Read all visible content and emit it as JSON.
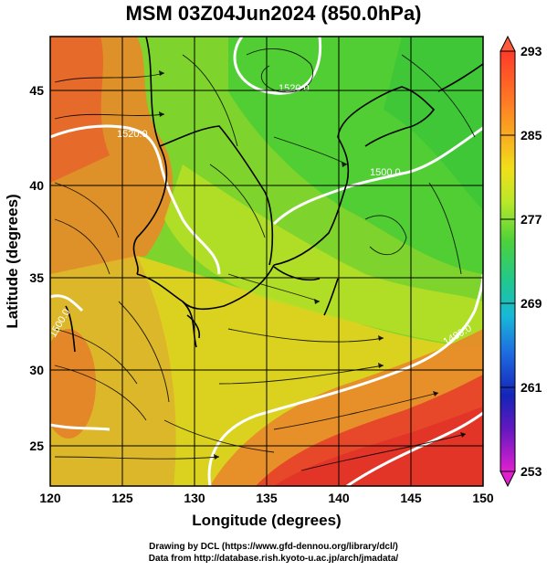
{
  "title": "MSM 03Z04Jun2024 (850.0hPa)",
  "credits": {
    "line1": "Drawing by DCL (https://www.gfd-dennou.org/library/dcl/)",
    "line2": "Data from http://database.rish.kyoto-u.ac.jp/arch/jmadata/"
  },
  "axes": {
    "xlabel": "Longitude (degrees)",
    "ylabel": "Latitude  (degrees)",
    "x_ticks": [
      "120",
      "125",
      "130",
      "135",
      "140",
      "145",
      "150"
    ],
    "y_ticks": [
      "45",
      "40",
      "35",
      "30",
      "25"
    ]
  },
  "colorbar": {
    "labels": [
      "293",
      "285",
      "277",
      "269",
      "261",
      "253"
    ],
    "colors": [
      "#ff3a2a",
      "#ff8a24",
      "#f4d41a",
      "#b8e82a",
      "#4ed23a",
      "#18c8b0",
      "#1e7ae0",
      "#1530c8",
      "#8a1ac8",
      "#e020d0"
    ]
  },
  "map": {
    "contour_labels": [
      "1520.0",
      "1520.0",
      "1500.0",
      "1480.0",
      "1500.0"
    ],
    "field_colors": {
      "hot": "#e8442a",
      "warm": "#f09a2a",
      "mild": "#e8d21c",
      "cool": "#9ed828",
      "cold": "#3cc83a"
    }
  }
}
